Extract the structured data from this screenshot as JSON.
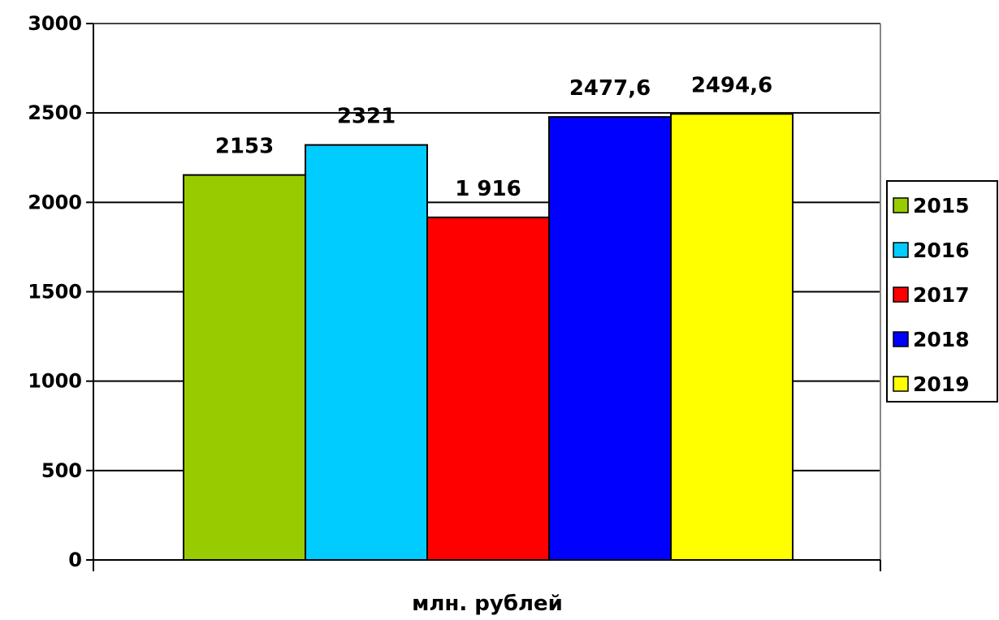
{
  "chart_data": {
    "type": "bar",
    "categories": [
      ""
    ],
    "series": [
      {
        "name": "2015",
        "values": [
          2153
        ],
        "label": "2153",
        "color": "#99cc00"
      },
      {
        "name": "2016",
        "values": [
          2321
        ],
        "label": "2321",
        "color": "#00ccff"
      },
      {
        "name": "2017",
        "values": [
          1916
        ],
        "label": "1 916",
        "color": "#ff0000"
      },
      {
        "name": "2018",
        "values": [
          2477.6
        ],
        "label": "2477,6",
        "color": "#0000ff"
      },
      {
        "name": "2019",
        "values": [
          2494.6
        ],
        "label": "2494,6",
        "color": "#ffff00"
      }
    ],
    "xlabel": "млн. рублей",
    "ylabel": "",
    "ylim": [
      0,
      3000
    ],
    "yticks": [
      "0",
      "500",
      "1000",
      "1500",
      "2000",
      "2500",
      "3000"
    ],
    "grid": true,
    "legend": "right"
  }
}
